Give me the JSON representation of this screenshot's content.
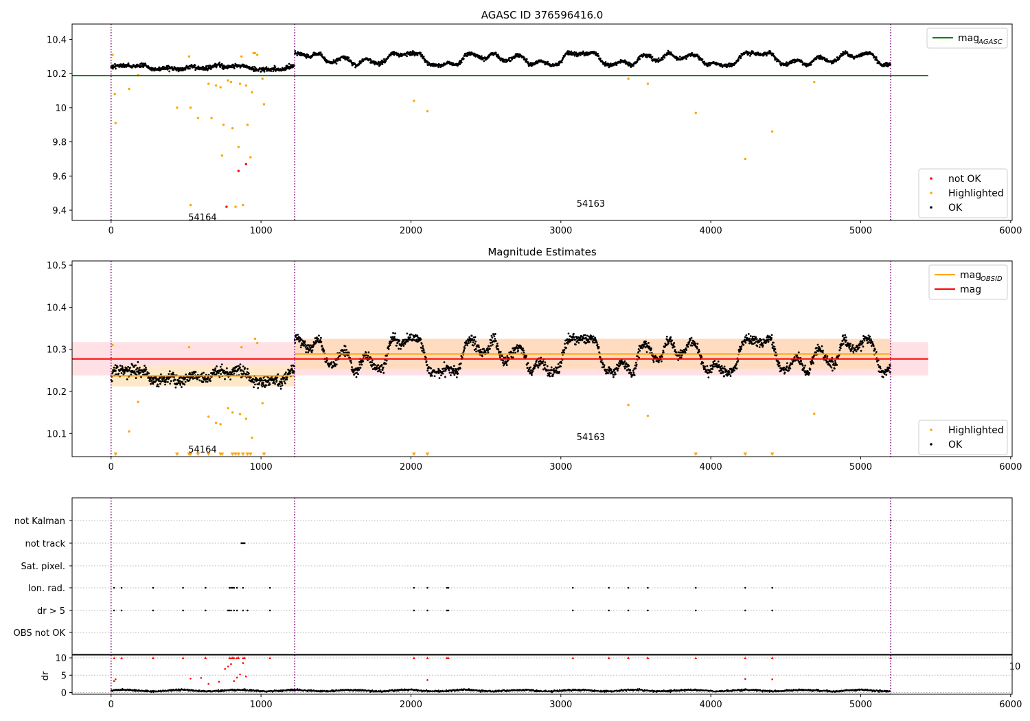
{
  "chart_data": [
    {
      "type": "scatter",
      "title": "AGASC ID 376596416.0",
      "xlim": [
        -260,
        6010
      ],
      "ylim": [
        9.34,
        10.49
      ],
      "xticks": [
        0,
        1000,
        2000,
        3000,
        4000,
        5000,
        6000
      ],
      "yticks": [
        9.4,
        9.6,
        9.8,
        10.0,
        10.2,
        10.4
      ],
      "obs_boundaries": [
        0,
        1225,
        5200
      ],
      "obs_labels": [
        {
          "text": "54164",
          "x": 610,
          "y": 9.36
        },
        {
          "text": "54163",
          "x": 3200,
          "y": 9.44
        }
      ],
      "lines": [
        {
          "name": "mag_AGASC",
          "color": "#008000",
          "x": [
            -260,
            5450
          ],
          "y": [
            10.188,
            10.188
          ]
        }
      ],
      "legends": {
        "top": [
          {
            "label": "mag",
            "sub": "AGASC",
            "kind": "line",
            "color": "#008000"
          }
        ],
        "bottom": [
          {
            "label": "not OK",
            "kind": "point",
            "color": "#ff0000"
          },
          {
            "label": "Highlighted",
            "kind": "point",
            "color": "#ffa500"
          },
          {
            "label": "OK",
            "kind": "point",
            "color": "#000000"
          }
        ]
      },
      "series": [
        {
          "name": "not OK",
          "color": "#ff0000",
          "points": [
            [
              770,
              9.42
            ],
            [
              850,
              9.63
            ],
            [
              900,
              9.67
            ]
          ]
        },
        {
          "name": "Highlighted",
          "color": "#ffa500",
          "points": [
            [
              10,
              10.31
            ],
            [
              25,
              10.08
            ],
            [
              30,
              9.91
            ],
            [
              120,
              10.11
            ],
            [
              180,
              10.19
            ],
            [
              440,
              10.0
            ],
            [
              520,
              10.3
            ],
            [
              530,
              10.0
            ],
            [
              530,
              9.43
            ],
            [
              580,
              9.94
            ],
            [
              650,
              10.14
            ],
            [
              670,
              9.94
            ],
            [
              700,
              10.13
            ],
            [
              730,
              10.12
            ],
            [
              740,
              9.72
            ],
            [
              750,
              9.9
            ],
            [
              780,
              10.16
            ],
            [
              800,
              10.15
            ],
            [
              810,
              9.88
            ],
            [
              830,
              9.42
            ],
            [
              850,
              9.77
            ],
            [
              860,
              10.14
            ],
            [
              870,
              10.3
            ],
            [
              880,
              9.43
            ],
            [
              900,
              10.13
            ],
            [
              910,
              9.9
            ],
            [
              930,
              9.71
            ],
            [
              940,
              10.09
            ],
            [
              950,
              10.32
            ],
            [
              960,
              10.32
            ],
            [
              975,
              10.31
            ],
            [
              1010,
              10.17
            ],
            [
              1020,
              10.02
            ],
            [
              2020,
              10.04
            ],
            [
              2110,
              9.98
            ],
            [
              3450,
              10.17
            ],
            [
              3580,
              10.14
            ],
            [
              3900,
              9.97
            ],
            [
              4230,
              9.7
            ],
            [
              4410,
              9.86
            ],
            [
              4690,
              10.15
            ]
          ]
        }
      ],
      "ok_segments": [
        {
          "x_start": 0,
          "x_end": 1225,
          "mean": 10.235,
          "noise": 0.018,
          "wave_amp": 0.012,
          "count": 520
        },
        {
          "x_start": 1225,
          "x_end": 5200,
          "mean": 10.285,
          "noise": 0.016,
          "wave_amp": 0.035,
          "count": 1700
        }
      ]
    },
    {
      "type": "scatter",
      "title": "Magnitude Estimates",
      "xlim": [
        -260,
        6010
      ],
      "ylim": [
        10.045,
        10.51
      ],
      "xticks": [
        0,
        1000,
        2000,
        3000,
        4000,
        5000,
        6000
      ],
      "yticks": [
        10.1,
        10.2,
        10.3,
        10.4,
        10.5
      ],
      "obs_boundaries": [
        0,
        1225,
        5200
      ],
      "obs_labels": [
        {
          "text": "54164",
          "x": 610,
          "y": 10.063
        },
        {
          "text": "54163",
          "x": 3200,
          "y": 10.092
        }
      ],
      "bands": [
        {
          "color": "#ffe0e4",
          "x": [
            -260,
            5450
          ],
          "y": [
            10.238,
            10.317
          ]
        },
        {
          "color": "#ffdcc0",
          "x": [
            1225,
            5200
          ],
          "y": [
            10.253,
            10.325
          ]
        },
        {
          "color": "#ffe8c8",
          "x": [
            0,
            1225
          ],
          "y": [
            10.212,
            10.262
          ]
        }
      ],
      "lines": [
        {
          "name": "mag",
          "color": "#ff0000",
          "x": [
            -260,
            5450
          ],
          "y": [
            10.277,
            10.277
          ]
        },
        {
          "name": "mag_OBSID 54164",
          "color": "#ffa500",
          "x": [
            0,
            1225
          ],
          "y": [
            10.237,
            10.237
          ]
        },
        {
          "name": "mag_OBSID 54163",
          "color": "#ffa500",
          "x": [
            1225,
            5200
          ],
          "y": [
            10.289,
            10.289
          ]
        }
      ],
      "legends": {
        "top": [
          {
            "label": "mag",
            "sub": "OBSID",
            "kind": "line",
            "color": "#ffa500"
          },
          {
            "label": "mag",
            "sub": "",
            "kind": "line",
            "color": "#ff0000"
          }
        ],
        "bottom": [
          {
            "label": "Highlighted",
            "kind": "point",
            "color": "#ffa500"
          },
          {
            "label": "OK",
            "kind": "point",
            "color": "#000000"
          }
        ]
      },
      "series": [
        {
          "name": "Highlighted",
          "color": "#ffa500",
          "points": [
            [
              10,
              10.31
            ],
            [
              120,
              10.105
            ],
            [
              180,
              10.175
            ],
            [
              520,
              10.305
            ],
            [
              650,
              10.14
            ],
            [
              700,
              10.125
            ],
            [
              730,
              10.122
            ],
            [
              780,
              10.16
            ],
            [
              810,
              10.15
            ],
            [
              860,
              10.146
            ],
            [
              870,
              10.305
            ],
            [
              900,
              10.135
            ],
            [
              940,
              10.09
            ],
            [
              960,
              10.325
            ],
            [
              975,
              10.315
            ],
            [
              1010,
              10.172
            ],
            [
              3450,
              10.168
            ],
            [
              3580,
              10.142
            ],
            [
              4690,
              10.147
            ]
          ]
        },
        {
          "name": "Highlighted (below axis)",
          "color": "#ffa500",
          "marker": "triangle",
          "x": [
            30,
            440,
            520,
            530,
            580,
            650,
            730,
            740,
            810,
            830,
            850,
            880,
            910,
            930,
            1020,
            2020,
            2110,
            3900,
            4230,
            4410
          ]
        }
      ],
      "ok_segments": [
        {
          "x_start": 0,
          "x_end": 1225,
          "mean": 10.237,
          "noise": 0.02,
          "wave_amp": 0.014,
          "count": 560
        },
        {
          "x_start": 1225,
          "x_end": 5200,
          "mean": 10.285,
          "noise": 0.018,
          "wave_amp": 0.04,
          "count": 1750
        }
      ]
    },
    {
      "type": "scatter",
      "title": "",
      "xlim": [
        -260,
        6010
      ],
      "xticks": [
        0,
        1000,
        2000,
        3000,
        4000,
        5000,
        6000
      ],
      "obs_boundaries": [
        0,
        1225,
        5200
      ],
      "flag_rows": [
        "not Kalman",
        "not track",
        "Sat. pixel.",
        "Ion. rad.",
        "dr > 5",
        "OBS not OK"
      ],
      "flags": {
        "not Kalman": [
          5200
        ],
        "not track": [
          870,
          880,
          890
        ],
        "Sat. pixel.": [],
        "Ion. rad.": [
          20,
          70,
          280,
          480,
          630,
          790,
          800,
          810,
          820,
          840,
          880,
          1060,
          2020,
          2110,
          2240,
          2250,
          3080,
          3320,
          3450,
          3580,
          3900,
          4230,
          4410
        ],
        "dr > 5": [
          20,
          70,
          280,
          480,
          630,
          780,
          790,
          800,
          820,
          840,
          880,
          910,
          1060,
          2020,
          2110,
          2240,
          2250,
          3080,
          3320,
          3450,
          3580,
          3900,
          4230,
          4410
        ],
        "OBS not OK": []
      },
      "dr": {
        "ylabel": "dr",
        "ylim": [
          -0.5,
          10.8
        ],
        "yticks": [
          0,
          5,
          10
        ],
        "clipped_label": "10",
        "clipped_red_x": [
          20,
          70,
          280,
          480,
          630,
          790,
          800,
          810,
          820,
          840,
          850,
          880,
          890,
          1060,
          2020,
          2110,
          2240,
          2250,
          3080,
          3320,
          3450,
          3580,
          3900,
          4230,
          4410,
          5200
        ],
        "red_points": [
          [
            20,
            3.3
          ],
          [
            30,
            3.8
          ],
          [
            530,
            4.0
          ],
          [
            600,
            4.2
          ],
          [
            650,
            2.5
          ],
          [
            720,
            3.1
          ],
          [
            760,
            6.8
          ],
          [
            780,
            7.5
          ],
          [
            800,
            8.2
          ],
          [
            820,
            3.3
          ],
          [
            840,
            4.3
          ],
          [
            860,
            5.2
          ],
          [
            880,
            8.5
          ],
          [
            900,
            4.6
          ],
          [
            2110,
            3.6
          ],
          [
            4230,
            3.9
          ],
          [
            4410,
            3.8
          ]
        ],
        "ok_level": 0.55,
        "ok_noise": 0.3
      }
    }
  ]
}
